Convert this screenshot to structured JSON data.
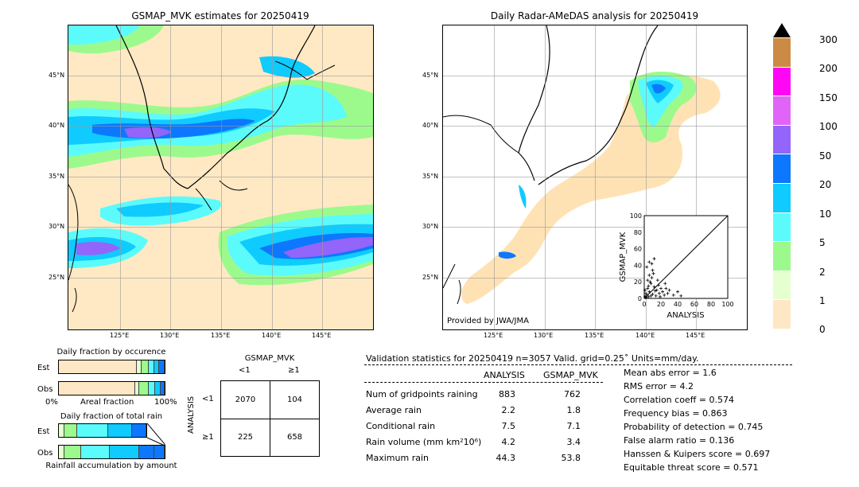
{
  "colors": {
    "land": "#ffeccb",
    "cb": [
      "#fde7c4",
      "#e6ffd1",
      "#9cfa8c",
      "#5bfbfb",
      "#0fcbff",
      "#0d77fd",
      "#9365fa",
      "#e164f9",
      "#ff06f5",
      "#cc8b44"
    ]
  },
  "left_map": {
    "title": "GSMAP_MVK estimates for 20250419",
    "lat_labels": [
      "45°N",
      "40°N",
      "35°N",
      "30°N",
      "25°N"
    ],
    "lon_labels": [
      "125°E",
      "130°E",
      "135°E",
      "140°E",
      "145°E"
    ]
  },
  "right_map": {
    "title": "Daily Radar-AMeDAS analysis for 20250419",
    "lat_labels": [
      "45°N",
      "40°N",
      "35°N",
      "30°N",
      "25°N"
    ],
    "lon_labels": [
      "125°E",
      "130°E",
      "135°E",
      "140°E",
      "145°E"
    ],
    "credit": "Provided by JWA/JMA"
  },
  "colorbar": {
    "labels": [
      "300",
      "200",
      "150",
      "100",
      "50",
      "20",
      "10",
      "5",
      "2",
      "1",
      "0"
    ]
  },
  "chart_data": {
    "type": "scatter",
    "xlabel": "ANALYSIS",
    "ylabel": "GSMAP_MVK",
    "xlim": [
      0,
      100
    ],
    "ylim": [
      0,
      100
    ],
    "ticks": [
      "0",
      "20",
      "40",
      "60",
      "80",
      "100"
    ],
    "points": [
      [
        2,
        1
      ],
      [
        3,
        4
      ],
      [
        5,
        2
      ],
      [
        6,
        8
      ],
      [
        8,
        3
      ],
      [
        4,
        12
      ],
      [
        10,
        5
      ],
      [
        12,
        14
      ],
      [
        7,
        20
      ],
      [
        9,
        25
      ],
      [
        11,
        30
      ],
      [
        15,
        10
      ],
      [
        18,
        6
      ],
      [
        20,
        12
      ],
      [
        22,
        8
      ],
      [
        25,
        18
      ],
      [
        14,
        3
      ],
      [
        6,
        44
      ],
      [
        9,
        42
      ],
      [
        12,
        48
      ],
      [
        3,
        38
      ],
      [
        16,
        22
      ],
      [
        28,
        6
      ],
      [
        35,
        4
      ],
      [
        44,
        3
      ],
      [
        30,
        10
      ],
      [
        5,
        15
      ],
      [
        8,
        18
      ],
      [
        2,
        6
      ],
      [
        1,
        2
      ],
      [
        13,
        9
      ],
      [
        17,
        16
      ],
      [
        19,
        2
      ],
      [
        24,
        4
      ],
      [
        6,
        28
      ],
      [
        4,
        22
      ],
      [
        10,
        34
      ],
      [
        1,
        10
      ],
      [
        26,
        12
      ],
      [
        40,
        8
      ]
    ]
  },
  "occurrence": {
    "title": "Daily fraction by occurence",
    "rows": [
      "Est",
      "Obs"
    ],
    "axis_left": "0%",
    "axis_mid": "Areal fraction",
    "axis_right": "100%"
  },
  "total_rain": {
    "title": "Daily fraction of total rain",
    "rows": [
      "Est",
      "Obs"
    ],
    "footer": "Rainfall accumulation by amount"
  },
  "contingency": {
    "col_header": "GSMAP_MVK",
    "col_lt": "<1",
    "col_ge": "≥1",
    "row_header": "ANALYSIS",
    "row_lt": "<1",
    "row_ge": "≥1",
    "a": "2070",
    "b": "104",
    "c": "225",
    "d": "658"
  },
  "validation": {
    "header": "Validation statistics for 20250419  n=3057 Valid. grid=0.25˚ Units=mm/day.",
    "col_analysis": "ANALYSIS",
    "col_gsmap": "GSMAP_MVK",
    "rows": [
      {
        "label": "Num of gridpoints raining",
        "analysis": "883",
        "gsmap": "762"
      },
      {
        "label": "Average rain",
        "analysis": "2.2",
        "gsmap": "1.8"
      },
      {
        "label": "Conditional rain",
        "analysis": "7.5",
        "gsmap": "7.1"
      },
      {
        "label": "Rain volume (mm km²10⁶)",
        "analysis": "4.2",
        "gsmap": "3.4"
      },
      {
        "label": "Maximum rain",
        "analysis": "44.3",
        "gsmap": "53.8"
      }
    ],
    "scores": [
      "Mean abs error =    1.6",
      "RMS error =    4.2",
      "Correlation coeff =  0.574",
      "Frequency bias =  0.863",
      "Probability of detection =  0.745",
      "False alarm ratio =  0.136",
      "Hanssen & Kuipers score =  0.697",
      "Equitable threat score =  0.571"
    ]
  }
}
